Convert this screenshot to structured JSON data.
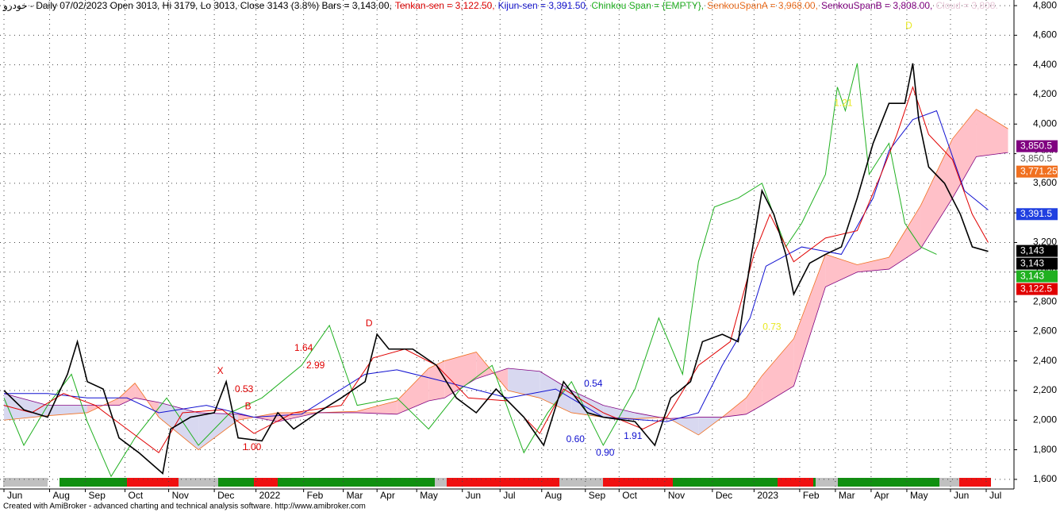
{
  "chart_data": {
    "type": "line",
    "header": [
      {
        "text": "خودرو - Daily 07/02/2023 Open 3013, Hi 3179, Lo 3013, Close 3143 (3.8%) Bars = 3,143.00,",
        "color": "#000000"
      },
      {
        "text": "Tenkan-sen = 3,122.50,",
        "color": "#e00000"
      },
      {
        "text": "Kijun-sen = 3,391.50,",
        "color": "#1010d0"
      },
      {
        "text": "Chinkou Span = {EMPTY},",
        "color": "#20b020"
      },
      {
        "text": "SenkouSpanA = 3,968.00,",
        "color": "#f07020"
      },
      {
        "text": "SenkouSpanB = 3,808.00,",
        "color": "#800080"
      },
      {
        "text": "Cloud = 3,808.",
        "color": "#e8c8d8"
      }
    ],
    "footer": "Created with AmiBroker - advanced charting and technical analysis software. http://www.amibroker.com",
    "xlim": [
      0,
      511
    ],
    "xticks": [
      {
        "value": 2,
        "label": "Jun"
      },
      {
        "value": 25,
        "label": "Aug"
      },
      {
        "value": 43,
        "label": "Sep"
      },
      {
        "value": 63,
        "label": "Oct"
      },
      {
        "value": 85,
        "label": "Nov"
      },
      {
        "value": 108,
        "label": "Dec"
      },
      {
        "value": 129,
        "label": "2022"
      },
      {
        "value": 153,
        "label": "Feb"
      },
      {
        "value": 173,
        "label": "Mar"
      },
      {
        "value": 190,
        "label": "Apr"
      },
      {
        "value": 210,
        "label": "May"
      },
      {
        "value": 233,
        "label": "Jun"
      },
      {
        "value": 252,
        "label": "Jul"
      },
      {
        "value": 273,
        "label": "Aug"
      },
      {
        "value": 295,
        "label": "Sep"
      },
      {
        "value": 312,
        "label": "Oct"
      },
      {
        "value": 335,
        "label": "Nov"
      },
      {
        "value": 359,
        "label": "Dec"
      },
      {
        "value": 380,
        "label": "2023"
      },
      {
        "value": 403,
        "label": "Feb"
      },
      {
        "value": 421,
        "label": "Mar"
      },
      {
        "value": 439,
        "label": "Apr"
      },
      {
        "value": 457,
        "label": "May"
      },
      {
        "value": 479,
        "label": "Jun"
      },
      {
        "value": 497,
        "label": "Jul"
      }
    ],
    "ylim": [
      1535,
      4838
    ],
    "yticks": [
      {
        "value": 1600,
        "label": "1,600"
      },
      {
        "value": 1800,
        "label": "1,800"
      },
      {
        "value": 2000,
        "label": "2,000"
      },
      {
        "value": 2200,
        "label": "2,200"
      },
      {
        "value": 2400,
        "label": "2,400"
      },
      {
        "value": 2600,
        "label": "2,600"
      },
      {
        "value": 2800,
        "label": "2,800"
      },
      {
        "value": 3000,
        "label": "3,000"
      },
      {
        "value": 3200,
        "label": "3,200"
      },
      {
        "value": 3400,
        "label": "3,400"
      },
      {
        "value": 3600,
        "label": "3,600"
      },
      {
        "value": 3800,
        "label": "3,800"
      },
      {
        "value": 4000,
        "label": "4,000"
      },
      {
        "value": 4200,
        "label": "4,200"
      },
      {
        "value": 4400,
        "label": "4,400"
      },
      {
        "value": 4600,
        "label": "4,600"
      },
      {
        "value": 4800,
        "label": "4,800"
      }
    ],
    "grid": true,
    "cloud": {
      "x": [
        2,
        24,
        44,
        60,
        68,
        80,
        100,
        120,
        140,
        160,
        180,
        200,
        216,
        224,
        240,
        256,
        272,
        288,
        304,
        320,
        336,
        352,
        364,
        376,
        384,
        400,
        416,
        432,
        448,
        464,
        480,
        492,
        508
      ],
      "a": {
        "color": "#f07020",
        "values": [
          2000,
          2030,
          2050,
          2150,
          2250,
          2020,
          1800,
          2000,
          2050,
          2050,
          2060,
          2130,
          2350,
          2400,
          2460,
          2200,
          2150,
          2050,
          2020,
          2010,
          2020,
          1900,
          2020,
          2150,
          2300,
          2550,
          3120,
          3050,
          3100,
          3450,
          3900,
          4100,
          3968
        ]
      },
      "b": {
        "color": "#800080",
        "values": [
          2180,
          2100,
          2100,
          2100,
          2150,
          2120,
          2050,
          2040,
          1990,
          2050,
          2050,
          2040,
          2130,
          2150,
          2280,
          2350,
          2330,
          2200,
          2100,
          2050,
          2010,
          2020,
          2020,
          2040,
          2100,
          2230,
          2900,
          3000,
          3020,
          3160,
          3500,
          3780,
          3808
        ]
      },
      "up_color": "#ffc0c8",
      "down_color": "#d8d8f0"
    },
    "series": [
      {
        "name": "Chinkou Span",
        "color": "#20b020",
        "x": [
          2,
          12,
          24,
          36,
          44,
          56,
          68,
          84,
          100,
          116,
          132,
          152,
          166,
          180,
          200,
          216,
          232,
          248,
          264,
          276,
          288,
          304,
          320,
          332,
          344,
          352,
          360,
          372,
          384,
          396,
          404,
          416,
          422,
          426,
          432,
          438,
          448,
          456,
          464,
          472
        ],
        "values": [
          2150,
          1830,
          2100,
          2310,
          1990,
          1620,
          1880,
          2150,
          1830,
          2050,
          2150,
          2370,
          2640,
          2100,
          2150,
          1940,
          2210,
          2370,
          1780,
          2050,
          2260,
          1830,
          2210,
          2690,
          2310,
          3070,
          3440,
          3500,
          3600,
          3170,
          3330,
          3660,
          4250,
          4090,
          4410,
          3660,
          3870,
          3330,
          3170,
          3120
        ]
      },
      {
        "name": "Kijun-sen",
        "color": "#1010d0",
        "x": [
          2,
          24,
          44,
          64,
          80,
          104,
          128,
          152,
          184,
          200,
          224,
          256,
          280,
          304,
          336,
          352,
          364,
          378,
          386,
          404,
          424,
          440,
          448,
          460,
          472,
          486,
          498
        ],
        "values": [
          2180,
          2180,
          2150,
          2150,
          2050,
          2100,
          2020,
          2040,
          2310,
          2340,
          2260,
          2150,
          2210,
          2020,
          1990,
          2050,
          2370,
          2690,
          3040,
          3170,
          3120,
          3500,
          3820,
          4030,
          4090,
          3550,
          3420
        ]
      },
      {
        "name": "Tenkan-sen",
        "color": "#e00000",
        "x": [
          2,
          16,
          32,
          48,
          64,
          80,
          92,
          112,
          128,
          148,
          172,
          188,
          204,
          220,
          236,
          256,
          272,
          284,
          304,
          324,
          336,
          352,
          368,
          380,
          388,
          400,
          416,
          432,
          444,
          452,
          460,
          468,
          480,
          490,
          498
        ],
        "values": [
          2100,
          2050,
          2180,
          2100,
          1940,
          1780,
          2050,
          2070,
          1910,
          2050,
          2100,
          2420,
          2480,
          2370,
          2150,
          2130,
          1910,
          2210,
          2050,
          1940,
          2020,
          2370,
          2530,
          3120,
          3390,
          3070,
          3230,
          3280,
          3660,
          3930,
          4250,
          3930,
          3760,
          3390,
          3200
        ]
      },
      {
        "name": "Close",
        "color": "#000000",
        "x": [
          2,
          12,
          24,
          34,
          39,
          44,
          52,
          60,
          70,
          82,
          86,
          96,
          108,
          114,
          120,
          132,
          140,
          148,
          160,
          172,
          184,
          190,
          196,
          208,
          220,
          230,
          240,
          250,
          264,
          274,
          284,
          296,
          304,
          320,
          330,
          338,
          348,
          354,
          364,
          372,
          378,
          384,
          390,
          396,
          400,
          408,
          416,
          424,
          432,
          440,
          448,
          456,
          460,
          463,
          468,
          476,
          484,
          490,
          498
        ],
        "values": [
          2200,
          2070,
          2020,
          2310,
          2530,
          2260,
          2210,
          1880,
          1780,
          1640,
          1940,
          2020,
          2050,
          2260,
          1880,
          1860,
          2050,
          1940,
          2050,
          2150,
          2260,
          2580,
          2480,
          2480,
          2370,
          2150,
          2050,
          2210,
          2020,
          1830,
          2260,
          2050,
          2020,
          1990,
          1830,
          2150,
          2260,
          2530,
          2580,
          2530,
          3060,
          3550,
          3390,
          3120,
          2850,
          3060,
          3120,
          3170,
          3500,
          3870,
          4140,
          4140,
          4410,
          4030,
          3710,
          3600,
          3390,
          3170,
          3140
        ]
      }
    ],
    "annotations": [
      {
        "text": "X",
        "x": 111,
        "y": 2330,
        "color": "#e00000"
      },
      {
        "text": "0.53",
        "x": 123,
        "y": 2207,
        "color": "#e00000"
      },
      {
        "text": "B",
        "x": 125,
        "y": 2090,
        "color": "#e00000"
      },
      {
        "text": "1.00",
        "x": 127,
        "y": 1815,
        "color": "#e00000"
      },
      {
        "text": "1.64",
        "x": 153,
        "y": 2486,
        "color": "#e00000"
      },
      {
        "text": "2.99",
        "x": 159,
        "y": 2368,
        "color": "#e00000"
      },
      {
        "text": "D",
        "x": 186,
        "y": 2652,
        "color": "#e00000"
      },
      {
        "text": "0.54",
        "x": 299,
        "y": 2245,
        "color": "#1010d0"
      },
      {
        "text": "0.60",
        "x": 290,
        "y": 1868,
        "color": "#1010d0"
      },
      {
        "text": "0.90",
        "x": 305,
        "y": 1777,
        "color": "#1010d0"
      },
      {
        "text": "1.91",
        "x": 319,
        "y": 1890,
        "color": "#1010d0"
      },
      {
        "text": "0.73",
        "x": 389,
        "y": 2626,
        "color": "#e8e820"
      },
      {
        "text": "1.21",
        "x": 425,
        "y": 4140,
        "color": "#e8e820"
      },
      {
        "text": "D",
        "x": 458,
        "y": 4661,
        "color": "#e8e820"
      }
    ],
    "last_values": [
      {
        "value": 3850.5,
        "label": "3,850.5",
        "color": "#800080",
        "text_color": "#ffffff"
      },
      {
        "value": 3850.5,
        "label": "3,850.5",
        "color": "#ffffff",
        "text_color": "#555555"
      },
      {
        "value": 3771.25,
        "label": "3,771.25",
        "color": "#f07020",
        "text_color": "#ffffff"
      },
      {
        "value": 3391.5,
        "label": "3,391.5",
        "color": "#2040e0",
        "text_color": "#ffffff"
      },
      {
        "value": 3143,
        "label": "3,143",
        "color": "#000000",
        "text_color": "#ffffff"
      },
      {
        "value": 3143,
        "label": "3,143",
        "color": "#000000",
        "text_color": "#ffffff"
      },
      {
        "value": 3143,
        "label": "3,143",
        "color": "#20b020",
        "text_color": "#ffffff"
      },
      {
        "value": 3122.5,
        "label": "3,122.5",
        "color": "#e00000",
        "text_color": "#ffffff"
      }
    ]
  }
}
